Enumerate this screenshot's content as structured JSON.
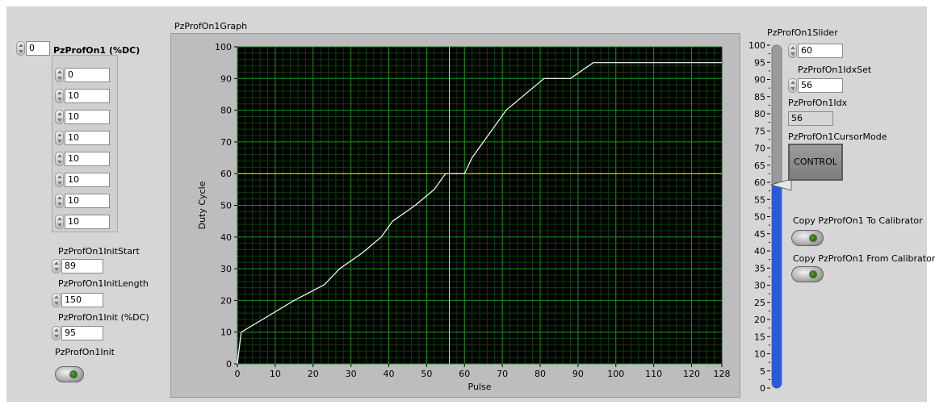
{
  "array": {
    "title": "PzProfOn1 (%DC)",
    "index": "0",
    "values": [
      "0",
      "10",
      "10",
      "10",
      "10",
      "10",
      "10",
      "10"
    ]
  },
  "init": {
    "start_label": "PzProfOn1InitStart",
    "start_value": "89",
    "length_label": "PzProfOn1InitLength",
    "length_value": "150",
    "dc_label": "PzProfOn1Init (%DC)",
    "dc_value": "95",
    "button_label": "PzProfOn1Init"
  },
  "graph": {
    "title": "PzProfOn1Graph"
  },
  "slider": {
    "label": "PzProfOn1Slider",
    "value": "60",
    "ticks": [
      "100",
      "95",
      "90",
      "85",
      "80",
      "75",
      "70",
      "65",
      "60",
      "55",
      "50",
      "45",
      "40",
      "35",
      "30",
      "25",
      "20",
      "15",
      "10",
      "5",
      "0"
    ],
    "level": 60
  },
  "idxset": {
    "label": "PzProfOn1IdxSet",
    "value": "56"
  },
  "idx": {
    "label": "PzProfOn1Idx",
    "value": "56"
  },
  "cursor_mode": {
    "label": "PzProfOn1CursorMode",
    "value": "CONTROL"
  },
  "copy_to": {
    "label": "Copy PzProfOn1 To Calibrator"
  },
  "copy_from": {
    "label": "Copy PzProfOn1 From Calibrator"
  },
  "colors": {
    "plot_bg": "#000000",
    "grid_major": "#1f8a1f",
    "grid_minor": "#0d3f0d",
    "trace": "#ffffff",
    "cursor": "#e8e800",
    "slider_fill": "#2a5bd7"
  },
  "chart_data": {
    "type": "line",
    "title": "",
    "xlabel": "Pulse",
    "ylabel": "Duty Cycle",
    "xlim": [
      0,
      128
    ],
    "ylim": [
      0,
      100
    ],
    "xticks": [
      "0",
      "10",
      "20",
      "30",
      "40",
      "50",
      "60",
      "70",
      "80",
      "90",
      "100",
      "110",
      "120",
      "128"
    ],
    "yticks": [
      "0",
      "10",
      "20",
      "30",
      "40",
      "50",
      "60",
      "70",
      "80",
      "90",
      "100"
    ],
    "cursor": {
      "x": 56,
      "y": 60
    },
    "series": [
      {
        "x": [
          0,
          1,
          1,
          8,
          8,
          15,
          15,
          23,
          23,
          27,
          27,
          33,
          33,
          38,
          38,
          41,
          41,
          47,
          47,
          52,
          52,
          55,
          55,
          60,
          60,
          62,
          62,
          65,
          65,
          68,
          68,
          71,
          71,
          76,
          76,
          81,
          81,
          83,
          83,
          88,
          88,
          94,
          94,
          128
        ],
        "y": [
          0,
          10,
          10,
          15,
          15,
          20,
          20,
          25,
          25,
          30,
          30,
          35,
          35,
          40,
          40,
          45,
          45,
          50,
          50,
          55,
          55,
          60,
          60,
          60,
          60,
          65,
          65,
          70,
          70,
          75,
          75,
          80,
          80,
          85,
          85,
          90,
          90,
          90,
          90,
          90,
          90,
          95,
          95,
          95
        ]
      }
    ]
  }
}
